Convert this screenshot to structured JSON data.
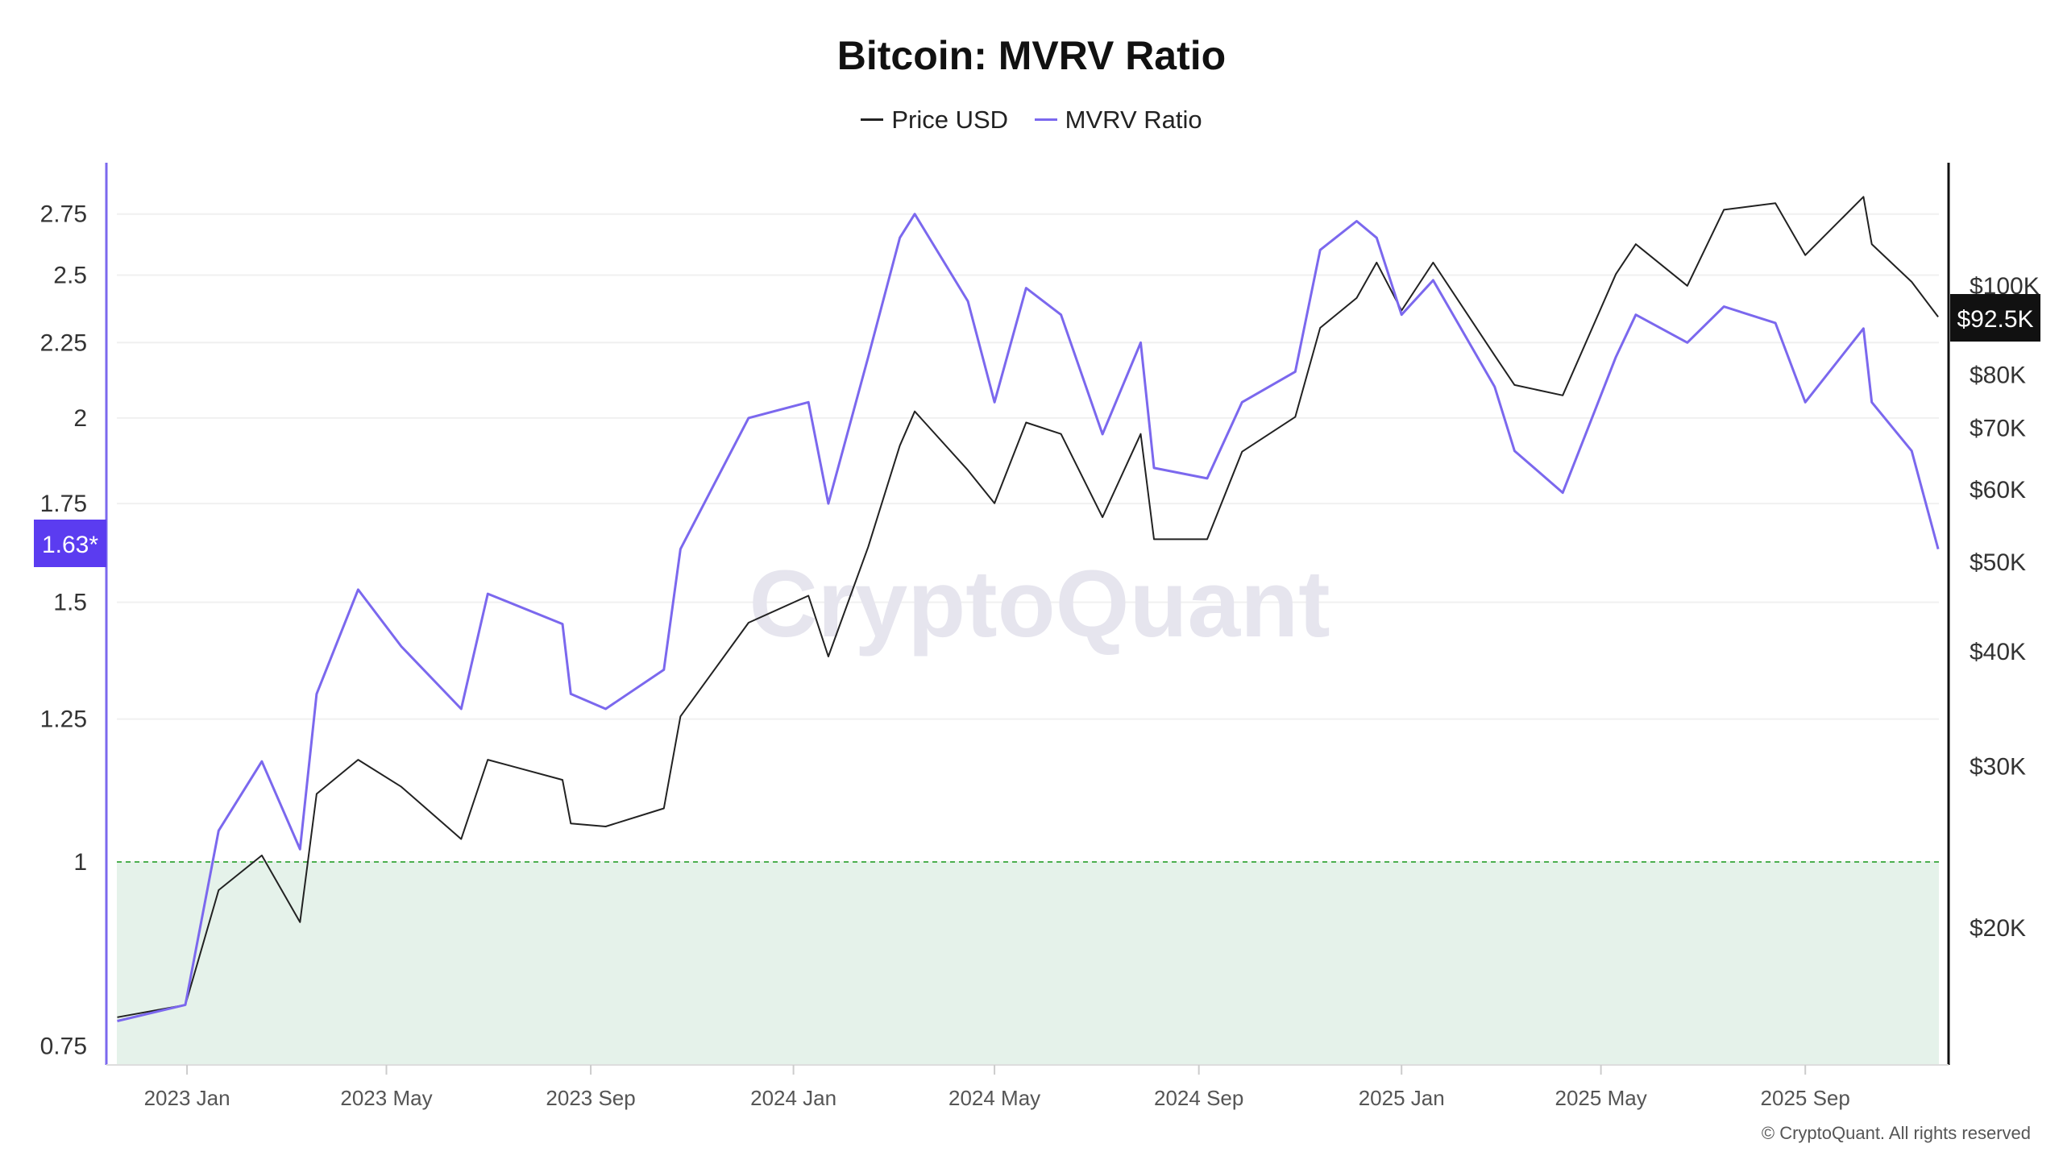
{
  "title": "Bitcoin: MVRV Ratio",
  "legend": [
    {
      "label": "Price USD",
      "color": "#222222"
    },
    {
      "label": "MVRV Ratio",
      "color": "#7b68ee"
    }
  ],
  "watermark": "CryptoQuant",
  "copyright": "© CryptoQuant. All rights reserved",
  "chart_data": {
    "type": "line",
    "title": "Bitcoin: MVRV Ratio",
    "x_ticks": [
      "2023 Jan",
      "2023 May",
      "2023 Sep",
      "2024 Jan",
      "2024 May",
      "2024 Sep",
      "2025 Jan",
      "2025 May",
      "2025 Sep"
    ],
    "x_tick_dates": [
      "2023-01-01",
      "2023-05-01",
      "2023-09-01",
      "2024-01-01",
      "2024-05-01",
      "2024-09-01",
      "2025-01-01",
      "2025-05-01",
      "2025-09-01"
    ],
    "left_axis": {
      "scale": "log",
      "ticks": [
        "0.75",
        "1",
        "1.25",
        "1.5",
        "1.75",
        "2",
        "2.25",
        "2.5",
        "2.75"
      ],
      "tick_values": [
        0.75,
        1,
        1.25,
        1.5,
        1.75,
        2,
        2.25,
        2.5,
        2.75
      ],
      "current_label": "1.63*",
      "current_value": 1.63,
      "current_color": "#5b3cf0"
    },
    "right_axis": {
      "scale": "log",
      "ticks": [
        "$20K",
        "$30K",
        "$40K",
        "$50K",
        "$60K",
        "$70K",
        "$80K",
        "$100K"
      ],
      "tick_values": [
        20000,
        30000,
        40000,
        50000,
        60000,
        70000,
        80000,
        100000
      ],
      "current_label": "$92.5K",
      "current_value": 92500
    },
    "threshold": {
      "value": 1,
      "zone": "below",
      "color": "#4caf50",
      "fill": "#e5f2ea"
    },
    "grid": "horizontal",
    "legend_position": "top",
    "dates": [
      "2022-11-20",
      "2022-12-31",
      "2023-01-20",
      "2023-02-15",
      "2023-03-10",
      "2023-03-20",
      "2023-04-14",
      "2023-05-10",
      "2023-06-15",
      "2023-07-01",
      "2023-08-15",
      "2023-08-20",
      "2023-09-10",
      "2023-10-15",
      "2023-10-25",
      "2023-12-05",
      "2024-01-10",
      "2024-01-22",
      "2024-02-15",
      "2024-03-05",
      "2024-03-14",
      "2024-04-15",
      "2024-05-01",
      "2024-05-20",
      "2024-06-10",
      "2024-07-05",
      "2024-07-28",
      "2024-08-05",
      "2024-09-06",
      "2024-09-27",
      "2024-10-29",
      "2024-11-13",
      "2024-12-05",
      "2024-12-17",
      "2025-01-01",
      "2025-01-20",
      "2025-02-26",
      "2025-03-10",
      "2025-04-08",
      "2025-05-10",
      "2025-05-22",
      "2025-06-22",
      "2025-07-14",
      "2025-08-14",
      "2025-09-01",
      "2025-10-06",
      "2025-10-11",
      "2025-11-04",
      "2025-11-20"
    ],
    "series": [
      {
        "name": "Price USD",
        "axis": "right",
        "color": "#222222",
        "values": [
          16000,
          16500,
          22000,
          24000,
          20300,
          28000,
          30500,
          28500,
          25000,
          30500,
          29000,
          26000,
          25800,
          27000,
          34000,
          43000,
          46000,
          39500,
          52000,
          67000,
          73000,
          63000,
          58000,
          71000,
          69000,
          56000,
          69000,
          53000,
          53000,
          66000,
          72000,
          90000,
          97000,
          106000,
          94000,
          106000,
          84000,
          78000,
          76000,
          103000,
          111000,
          100000,
          121000,
          123000,
          108000,
          125000,
          111000,
          101000,
          92500
        ]
      },
      {
        "name": "MVRV Ratio",
        "axis": "left",
        "color": "#7b68ee",
        "values": [
          0.78,
          0.8,
          1.05,
          1.17,
          1.02,
          1.3,
          1.53,
          1.4,
          1.27,
          1.52,
          1.45,
          1.3,
          1.27,
          1.35,
          1.63,
          2.0,
          2.05,
          1.75,
          2.2,
          2.65,
          2.75,
          2.4,
          2.05,
          2.45,
          2.35,
          1.95,
          2.25,
          1.85,
          1.82,
          2.05,
          2.15,
          2.6,
          2.72,
          2.65,
          2.35,
          2.48,
          2.1,
          1.9,
          1.78,
          2.2,
          2.35,
          2.25,
          2.38,
          2.32,
          2.05,
          2.3,
          2.05,
          1.9,
          1.63
        ]
      }
    ]
  }
}
